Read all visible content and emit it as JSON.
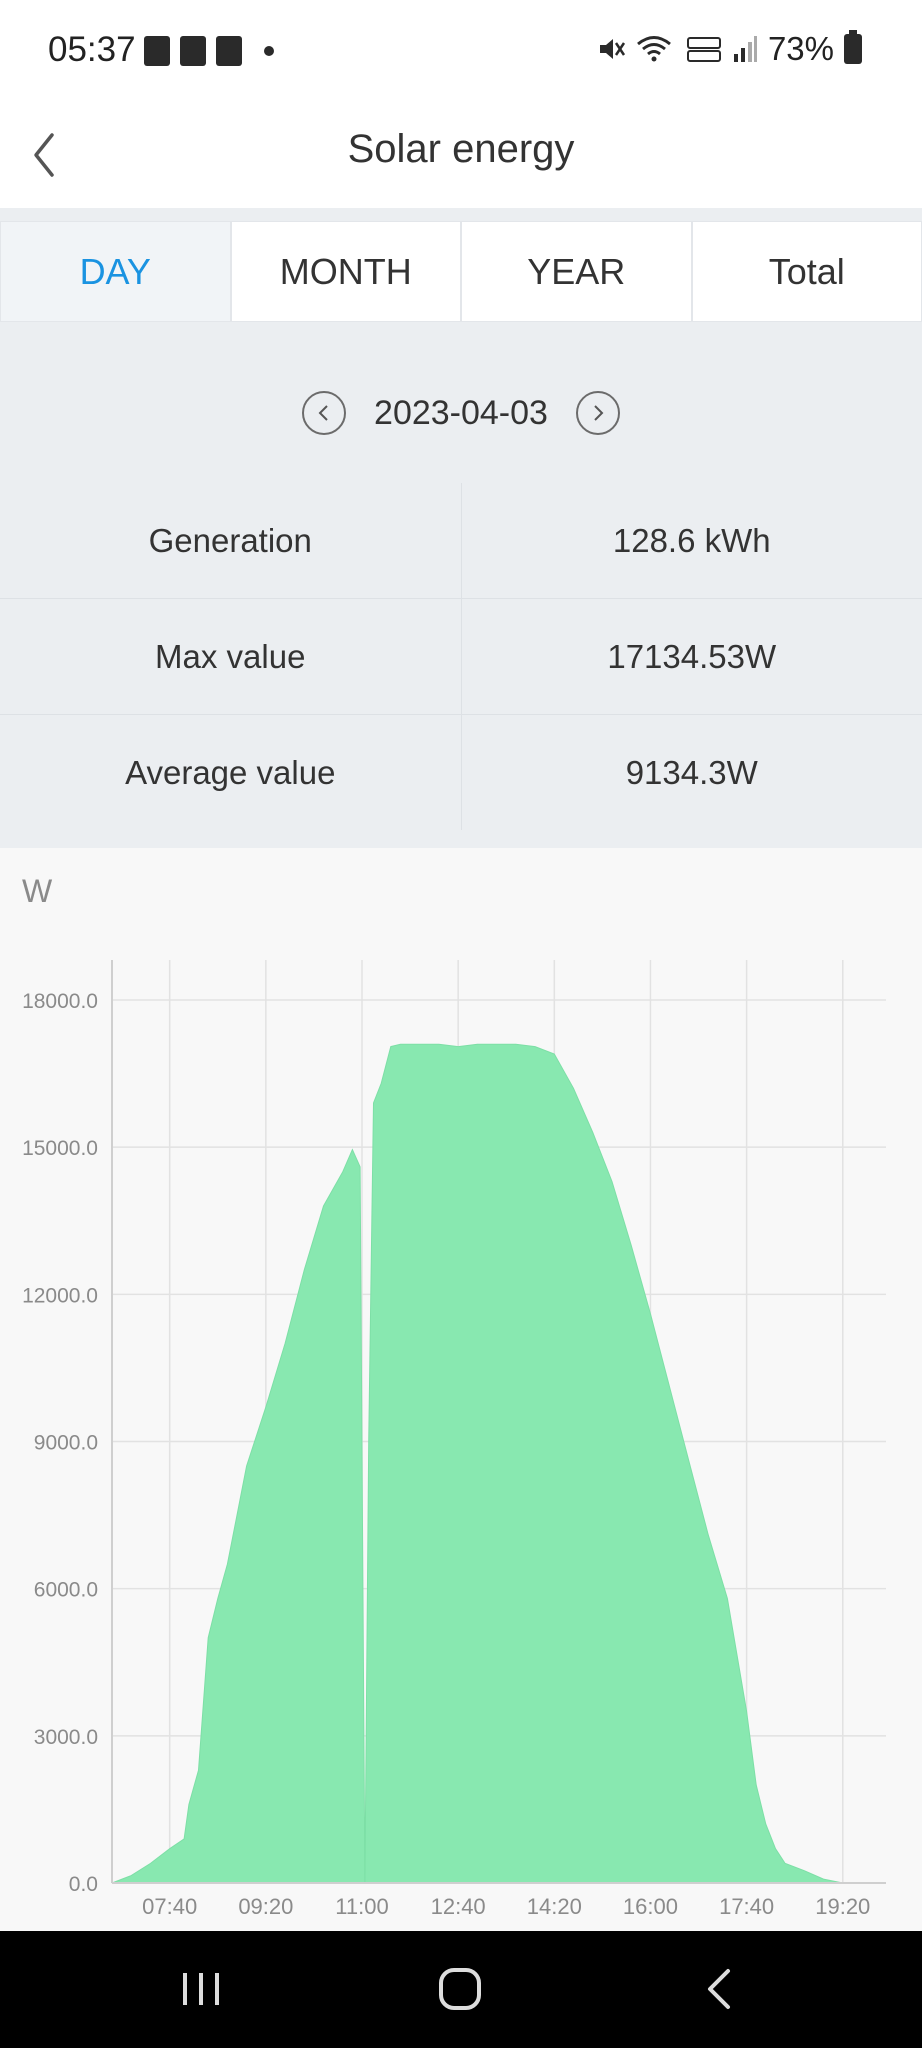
{
  "status_bar": {
    "time": "05:37",
    "battery": "73%"
  },
  "header": {
    "title": "Solar energy"
  },
  "tabs": [
    {
      "label": "DAY",
      "active": true
    },
    {
      "label": "MONTH",
      "active": false
    },
    {
      "label": "YEAR",
      "active": false
    },
    {
      "label": "Total",
      "active": false
    }
  ],
  "date_nav": {
    "date": "2023-04-03"
  },
  "stats": [
    {
      "label": "Generation",
      "value": "128.6 kWh"
    },
    {
      "label": "Max value",
      "value": "17134.53W"
    },
    {
      "label": "Average value",
      "value": "9134.3W"
    }
  ],
  "colors": {
    "accent": "#1a93e1",
    "area_fill": "#88e8b0"
  },
  "chart_data": {
    "type": "area",
    "ylabel": "W",
    "ylim": [
      0,
      18000
    ],
    "yticks": [
      "0.0",
      "3000.0",
      "6000.0",
      "9000.0",
      "12000.0",
      "15000.0",
      "18000.0"
    ],
    "xticks": [
      "07:40",
      "09:20",
      "11:00",
      "12:40",
      "14:20",
      "16:00",
      "17:40",
      "19:20"
    ],
    "grid": true,
    "series": [
      {
        "x": [
          "06:40",
          "07:00",
          "07:20",
          "07:40",
          "07:55",
          "08:00",
          "08:10",
          "08:20",
          "08:30",
          "08:40",
          "08:50",
          "09:00",
          "09:20",
          "09:40",
          "10:00",
          "10:20",
          "10:40",
          "10:50",
          "10:58",
          "11:03",
          "11:07",
          "11:12",
          "11:20",
          "11:30",
          "11:40",
          "12:00",
          "12:20",
          "12:40",
          "13:00",
          "13:20",
          "13:40",
          "14:00",
          "14:20",
          "14:40",
          "15:00",
          "15:20",
          "15:40",
          "16:00",
          "16:20",
          "16:40",
          "17:00",
          "17:20",
          "17:40",
          "17:50",
          "18:00",
          "18:10",
          "18:20",
          "18:40",
          "19:00",
          "19:20",
          "19:30",
          "19:40"
        ],
        "values": [
          0,
          150,
          400,
          700,
          900,
          1600,
          2300,
          5000,
          5800,
          6500,
          7500,
          8500,
          9700,
          11000,
          12500,
          13800,
          14500,
          14950,
          14600,
          0,
          9000,
          15900,
          16300,
          17050,
          17100,
          17100,
          17100,
          17050,
          17100,
          17100,
          17100,
          17050,
          16900,
          16200,
          15300,
          14300,
          13000,
          11600,
          10100,
          8600,
          7100,
          5800,
          3500,
          2000,
          1200,
          700,
          400,
          250,
          80,
          0,
          0,
          0
        ]
      }
    ]
  }
}
